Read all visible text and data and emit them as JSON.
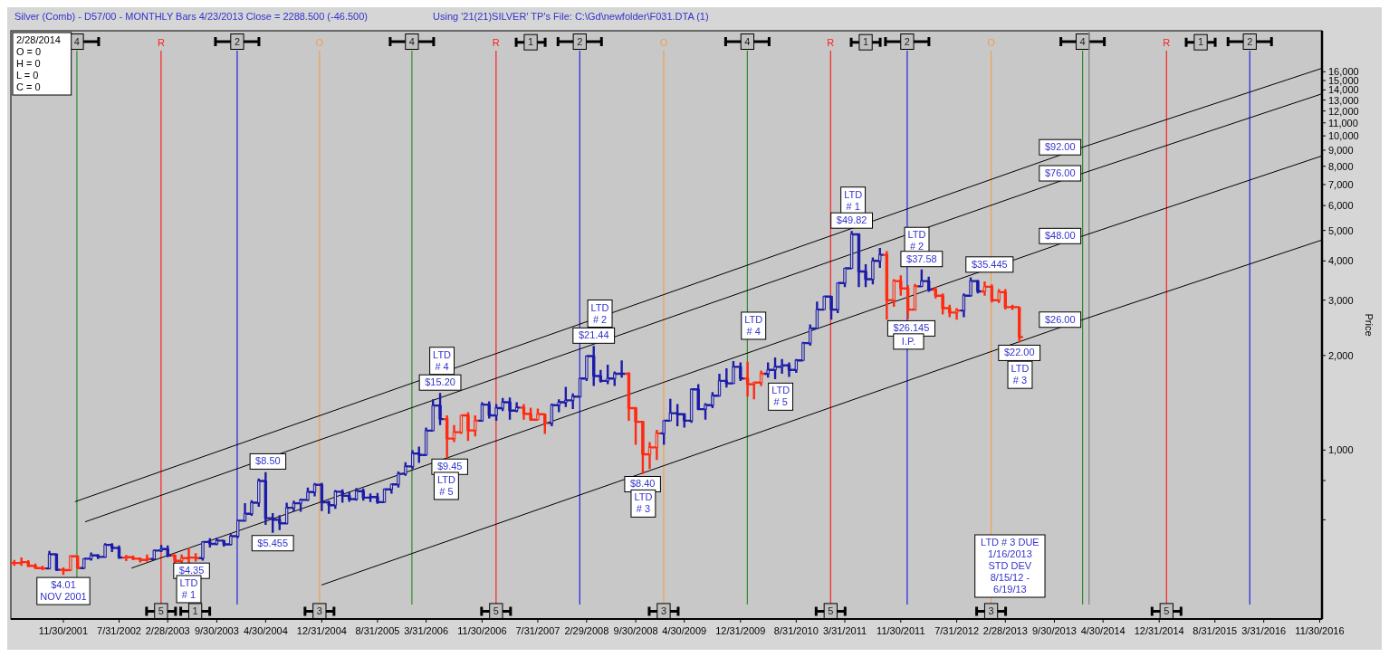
{
  "chart_data": {
    "type": "candlestick",
    "title": "Silver (Comb) - D57/00  - MONTHLY Bars  4/23/2013 Close = 2288.500 (-46.500)",
    "subtitle": "Using '21(21)SILVER' TP's    File: C:\\Gd\\newfolder\\F031.DTA (1)",
    "ylabel": "Price",
    "log": true,
    "xlim": [
      "2001-04-15",
      "2016-12-10"
    ],
    "ylim": [
      290,
      21600
    ],
    "xticks": [
      {
        "value": "2001-11-30",
        "label": "11/30/2001"
      },
      {
        "value": "2002-07-31",
        "label": "7/31/2002"
      },
      {
        "value": "2003-02-28",
        "label": "2/28/2003"
      },
      {
        "value": "2003-09-30",
        "label": "9/30/2003"
      },
      {
        "value": "2004-04-30",
        "label": "4/30/2004"
      },
      {
        "value": "2004-12-31",
        "label": "12/31/2004"
      },
      {
        "value": "2005-08-31",
        "label": "8/31/2005"
      },
      {
        "value": "2006-03-31",
        "label": "3/31/2006"
      },
      {
        "value": "2006-11-30",
        "label": "11/30/2006"
      },
      {
        "value": "2007-07-31",
        "label": "7/31/2007"
      },
      {
        "value": "2008-02-29",
        "label": "2/29/2008"
      },
      {
        "value": "2008-09-30",
        "label": "9/30/2008"
      },
      {
        "value": "2009-04-30",
        "label": "4/30/2009"
      },
      {
        "value": "2009-12-31",
        "label": "12/31/2009"
      },
      {
        "value": "2010-08-31",
        "label": "8/31/2010"
      },
      {
        "value": "2011-03-31",
        "label": "3/31/2011"
      },
      {
        "value": "2011-11-30",
        "label": "11/30/2011"
      },
      {
        "value": "2012-07-31",
        "label": "7/31/2012"
      },
      {
        "value": "2013-02-28",
        "label": "2/28/2013"
      },
      {
        "value": "2013-09-30",
        "label": "9/30/2013"
      },
      {
        "value": "2014-04-30",
        "label": "4/30/2014"
      },
      {
        "value": "2014-12-31",
        "label": "12/31/2014"
      },
      {
        "value": "2015-08-31",
        "label": "8/31/2015"
      },
      {
        "value": "2016-03-31",
        "label": "3/31/2016"
      },
      {
        "value": "2016-11-30",
        "label": "11/30/2016"
      }
    ],
    "yticks": [
      {
        "value": 600,
        "label": null
      },
      {
        "value": 800,
        "label": null
      },
      {
        "value": 1000,
        "label": "1,000"
      },
      {
        "value": 2000,
        "label": "2,000"
      },
      {
        "value": 3000,
        "label": "3,000"
      },
      {
        "value": 4000,
        "label": "4,000"
      },
      {
        "value": 5000,
        "label": "5,000"
      },
      {
        "value": 6000,
        "label": "6,000"
      },
      {
        "value": 7000,
        "label": "7,000"
      },
      {
        "value": 8000,
        "label": "8,000"
      },
      {
        "value": 9000,
        "label": "9,000"
      },
      {
        "value": 10000,
        "label": "10,000"
      },
      {
        "value": 11000,
        "label": "11,000"
      },
      {
        "value": 12000,
        "label": "12,000"
      },
      {
        "value": 13000,
        "label": "13,000"
      },
      {
        "value": 14000,
        "label": "14,000"
      },
      {
        "value": 15000,
        "label": "15,000"
      },
      {
        "value": 16000,
        "label": "16,000"
      }
    ],
    "x": [
      "2001-04-30",
      "2001-05-31",
      "2001-06-30",
      "2001-07-31",
      "2001-08-31",
      "2001-09-30",
      "2001-10-31",
      "2001-11-30",
      "2001-12-31",
      "2002-01-31",
      "2002-02-28",
      "2002-03-31",
      "2002-04-30",
      "2002-05-31",
      "2002-06-30",
      "2002-07-31",
      "2002-08-31",
      "2002-09-30",
      "2002-10-31",
      "2002-11-30",
      "2002-12-31",
      "2003-01-31",
      "2003-02-28",
      "2003-03-31",
      "2003-04-30",
      "2003-05-31",
      "2003-06-30",
      "2003-07-31",
      "2003-08-31",
      "2003-09-30",
      "2003-10-31",
      "2003-11-30",
      "2003-12-31",
      "2004-01-31",
      "2004-02-29",
      "2004-03-31",
      "2004-04-30",
      "2004-05-31",
      "2004-06-30",
      "2004-07-31",
      "2004-08-31",
      "2004-09-30",
      "2004-10-31",
      "2004-11-30",
      "2004-12-31",
      "2005-01-31",
      "2005-02-28",
      "2005-03-31",
      "2005-04-30",
      "2005-05-31",
      "2005-06-30",
      "2005-07-31",
      "2005-08-31",
      "2005-09-30",
      "2005-10-31",
      "2005-11-30",
      "2005-12-31",
      "2006-01-31",
      "2006-02-28",
      "2006-03-31",
      "2006-04-30",
      "2006-05-31",
      "2006-06-30",
      "2006-07-31",
      "2006-08-31",
      "2006-09-30",
      "2006-10-31",
      "2006-11-30",
      "2006-12-31",
      "2007-01-31",
      "2007-02-28",
      "2007-03-31",
      "2007-04-30",
      "2007-05-31",
      "2007-06-30",
      "2007-07-31",
      "2007-08-31",
      "2007-09-30",
      "2007-10-31",
      "2007-11-30",
      "2007-12-31",
      "2008-01-31",
      "2008-02-29",
      "2008-03-31",
      "2008-04-30",
      "2008-05-31",
      "2008-06-30",
      "2008-07-31",
      "2008-08-31",
      "2008-09-30",
      "2008-10-31",
      "2008-11-30",
      "2008-12-31",
      "2009-01-31",
      "2009-02-28",
      "2009-03-31",
      "2009-04-30",
      "2009-05-31",
      "2009-06-30",
      "2009-07-31",
      "2009-08-31",
      "2009-09-30",
      "2009-10-31",
      "2009-11-30",
      "2009-12-31",
      "2010-01-31",
      "2010-02-28",
      "2010-03-31",
      "2010-04-30",
      "2010-05-31",
      "2010-06-30",
      "2010-07-31",
      "2010-08-31",
      "2010-09-30",
      "2010-10-31",
      "2010-11-30",
      "2010-12-31",
      "2011-01-31",
      "2011-02-28",
      "2011-03-31",
      "2011-04-30",
      "2011-05-31",
      "2011-06-30",
      "2011-07-31",
      "2011-08-31",
      "2011-09-30",
      "2011-10-31",
      "2011-11-30",
      "2011-12-31",
      "2012-01-31",
      "2012-02-29",
      "2012-03-31",
      "2012-04-30",
      "2012-05-31",
      "2012-06-30",
      "2012-07-31",
      "2012-08-31",
      "2012-09-30",
      "2012-10-31",
      "2012-11-30",
      "2012-12-31",
      "2013-01-31",
      "2013-02-28",
      "2013-03-31",
      "2013-04-30"
    ],
    "ohlc": [
      [
        437,
        447,
        428,
        437
      ],
      [
        437,
        455,
        428,
        440
      ],
      [
        440,
        446,
        424,
        428
      ],
      [
        428,
        435,
        419,
        421
      ],
      [
        421,
        428,
        415,
        420
      ],
      [
        420,
        478,
        417,
        466
      ],
      [
        466,
        469,
        412,
        416
      ],
      [
        416,
        423,
        401,
        415
      ],
      [
        415,
        463,
        413,
        459
      ],
      [
        459,
        462,
        419,
        421
      ],
      [
        421,
        451,
        419,
        451
      ],
      [
        451,
        472,
        445,
        462
      ],
      [
        462,
        467,
        450,
        457
      ],
      [
        457,
        505,
        454,
        499
      ],
      [
        499,
        505,
        474,
        488
      ],
      [
        488,
        497,
        451,
        455
      ],
      [
        455,
        464,
        443,
        456
      ],
      [
        456,
        461,
        446,
        451
      ],
      [
        451,
        455,
        439,
        447
      ],
      [
        447,
        465,
        441,
        450
      ],
      [
        450,
        482,
        448,
        479
      ],
      [
        479,
        499,
        474,
        484
      ],
      [
        484,
        497,
        456,
        462
      ],
      [
        462,
        466,
        436,
        444
      ],
      [
        444,
        465,
        436,
        453
      ],
      [
        453,
        489,
        435,
        455
      ],
      [
        455,
        470,
        442,
        453
      ],
      [
        453,
        513,
        445,
        510
      ],
      [
        510,
        524,
        490,
        503
      ],
      [
        503,
        526,
        498,
        515
      ],
      [
        515,
        517,
        493,
        501
      ],
      [
        501,
        540,
        497,
        532
      ],
      [
        532,
        600,
        525,
        596
      ],
      [
        596,
        678,
        592,
        627
      ],
      [
        627,
        692,
        618,
        680
      ],
      [
        680,
        812,
        660,
        797
      ],
      [
        797,
        850,
        578,
        607
      ],
      [
        607,
        630,
        545.5,
        600
      ],
      [
        600,
        621,
        556,
        585
      ],
      [
        585,
        680,
        580,
        655
      ],
      [
        655,
        690,
        638,
        677
      ],
      [
        677,
        700,
        636,
        694
      ],
      [
        694,
        760,
        688,
        735
      ],
      [
        735,
        785,
        712,
        775
      ],
      [
        775,
        787,
        640,
        682
      ],
      [
        682,
        690,
        627,
        668
      ],
      [
        668,
        746,
        650,
        737
      ],
      [
        737,
        750,
        680,
        715
      ],
      [
        715,
        735,
        685,
        698
      ],
      [
        698,
        757,
        690,
        740
      ],
      [
        740,
        755,
        690,
        706
      ],
      [
        706,
        728,
        683,
        709
      ],
      [
        709,
        730,
        674,
        683
      ],
      [
        683,
        755,
        680,
        750
      ],
      [
        750,
        780,
        726,
        778
      ],
      [
        778,
        855,
        760,
        840
      ],
      [
        840,
        915,
        828,
        887
      ],
      [
        887,
        999,
        870,
        975
      ],
      [
        975,
        1025,
        910,
        965
      ],
      [
        965,
        1180,
        960,
        1153
      ],
      [
        1153,
        1450,
        1150,
        1386
      ],
      [
        1386,
        1520,
        1200,
        1255
      ],
      [
        1255,
        1290,
        945,
        1088
      ],
      [
        1088,
        1200,
        1060,
        1140
      ],
      [
        1140,
        1290,
        1125,
        1290
      ],
      [
        1290,
        1320,
        1070,
        1155
      ],
      [
        1155,
        1290,
        1105,
        1240
      ],
      [
        1240,
        1420,
        1230,
        1395
      ],
      [
        1395,
        1430,
        1260,
        1290
      ],
      [
        1290,
        1400,
        1240,
        1360
      ],
      [
        1360,
        1465,
        1330,
        1420
      ],
      [
        1420,
        1470,
        1250,
        1335
      ],
      [
        1335,
        1420,
        1320,
        1365
      ],
      [
        1365,
        1400,
        1250,
        1305
      ],
      [
        1305,
        1365,
        1240,
        1250
      ],
      [
        1250,
        1355,
        1250,
        1300
      ],
      [
        1300,
        1305,
        1125,
        1220
      ],
      [
        1220,
        1405,
        1190,
        1390
      ],
      [
        1390,
        1450,
        1320,
        1420
      ],
      [
        1420,
        1590,
        1370,
        1440
      ],
      [
        1440,
        1515,
        1350,
        1480
      ],
      [
        1480,
        1690,
        1470,
        1690
      ],
      [
        1690,
        2000,
        1660,
        1990
      ],
      [
        1990,
        2144,
        1600,
        1720
      ],
      [
        1720,
        1800,
        1640,
        1660
      ],
      [
        1660,
        1870,
        1620,
        1690
      ],
      [
        1690,
        1780,
        1600,
        1750
      ],
      [
        1750,
        1930,
        1700,
        1750
      ],
      [
        1750,
        1770,
        1240,
        1360
      ],
      [
        1360,
        1370,
        1040,
        1230
      ],
      [
        1230,
        1240,
        840,
        970
      ],
      [
        970,
        1060,
        870,
        1020
      ],
      [
        1020,
        1160,
        930,
        1130
      ],
      [
        1130,
        1240,
        1040,
        1240
      ],
      [
        1240,
        1455,
        1240,
        1310
      ],
      [
        1310,
        1400,
        1190,
        1300
      ],
      [
        1300,
        1310,
        1180,
        1240
      ],
      [
        1240,
        1570,
        1220,
        1560
      ],
      [
        1560,
        1620,
        1340,
        1350
      ],
      [
        1350,
        1410,
        1250,
        1390
      ],
      [
        1390,
        1530,
        1360,
        1490
      ],
      [
        1490,
        1750,
        1480,
        1660
      ],
      [
        1660,
        1820,
        1580,
        1630
      ],
      [
        1630,
        1920,
        1630,
        1840
      ],
      [
        1840,
        1900,
        1660,
        1690
      ],
      [
        1690,
        1910,
        1480,
        1620
      ],
      [
        1620,
        1650,
        1450,
        1640
      ],
      [
        1640,
        1790,
        1600,
        1750
      ],
      [
        1750,
        1900,
        1700,
        1800
      ],
      [
        1800,
        1970,
        1680,
        1840
      ],
      [
        1840,
        1950,
        1750,
        1860
      ],
      [
        1860,
        1900,
        1710,
        1800
      ],
      [
        1800,
        1950,
        1760,
        1930
      ],
      [
        1930,
        2210,
        1930,
        2190
      ],
      [
        2190,
        2510,
        2150,
        2440
      ],
      [
        2440,
        2970,
        2440,
        2800
      ],
      [
        2800,
        3100,
        2800,
        3080
      ],
      [
        3080,
        3100,
        2600,
        2800
      ],
      [
        2800,
        3400,
        2730,
        3400
      ],
      [
        3400,
        3790,
        3300,
        3790
      ],
      [
        3790,
        4982,
        3780,
        4860
      ],
      [
        4860,
        4900,
        3300,
        3700
      ],
      [
        3700,
        3900,
        3300,
        3500
      ],
      [
        3500,
        4100,
        3370,
        4000
      ],
      [
        4000,
        4400,
        3800,
        4180
      ],
      [
        4180,
        4300,
        2600,
        3000
      ],
      [
        3000,
        3500,
        2860,
        3450
      ],
      [
        3450,
        3600,
        3100,
        3270
      ],
      [
        3270,
        3350,
        2614.5,
        2800
      ],
      [
        2800,
        3380,
        2780,
        3320
      ],
      [
        3320,
        3758,
        3300,
        3450
      ],
      [
        3450,
        3560,
        3190,
        3240
      ],
      [
        3240,
        3300,
        3040,
        3100
      ],
      [
        3100,
        3150,
        2700,
        2830
      ],
      [
        2830,
        2900,
        2650,
        2740
      ],
      [
        2740,
        2830,
        2600,
        2780
      ],
      [
        2780,
        3150,
        2650,
        3100
      ],
      [
        3100,
        3544.5,
        3080,
        3450
      ],
      [
        3450,
        3480,
        3150,
        3200
      ],
      [
        3200,
        3440,
        3100,
        3310
      ],
      [
        3310,
        3370,
        2950,
        3000
      ],
      [
        3000,
        3250,
        2940,
        3180
      ],
      [
        3180,
        3250,
        2800,
        2850
      ],
      [
        2850,
        2900,
        2790,
        2850
      ],
      [
        2850,
        2850,
        2200,
        2288.5
      ]
    ],
    "colors": [
      "#ff2a10",
      "#ff2a10",
      "#ff2a10",
      "#ff2a10",
      "#ff2a10",
      "#1c1ca8",
      "#1c1ca8",
      "#ff2a10",
      "#ff2a10",
      "#ff2a10",
      "#1c1ca8",
      "#1c1ca8",
      "#1c1ca8",
      "#1c1ca8",
      "#1c1ca8",
      "#1c1ca8",
      "#ff2a10",
      "#ff2a10",
      "#ff2a10",
      "#ff2a10",
      "#1c1ca8",
      "#1c1ca8",
      "#1c1ca8",
      "#ff2a10",
      "#ff2a10",
      "#ff2a10",
      "#ff2a10",
      "#1c1ca8",
      "#1c1ca8",
      "#1c1ca8",
      "#1c1ca8",
      "#1c1ca8",
      "#1c1ca8",
      "#1c1ca8",
      "#1c1ca8",
      "#1c1ca8",
      "#1c1ca8",
      "#1c1ca8",
      "#1c1ca8",
      "#1c1ca8",
      "#1c1ca8",
      "#1c1ca8",
      "#1c1ca8",
      "#1c1ca8",
      "#1c1ca8",
      "#1c1ca8",
      "#1c1ca8",
      "#1c1ca8",
      "#1c1ca8",
      "#1c1ca8",
      "#1c1ca8",
      "#1c1ca8",
      "#1c1ca8",
      "#1c1ca8",
      "#1c1ca8",
      "#1c1ca8",
      "#1c1ca8",
      "#1c1ca8",
      "#1c1ca8",
      "#1c1ca8",
      "#1c1ca8",
      "#1c1ca8",
      "#ff2a10",
      "#ff2a10",
      "#ff2a10",
      "#ff2a10",
      "#ff2a10",
      "#1c1ca8",
      "#1c1ca8",
      "#1c1ca8",
      "#1c1ca8",
      "#1c1ca8",
      "#1c1ca8",
      "#ff2a10",
      "#ff2a10",
      "#ff2a10",
      "#ff2a10",
      "#1c1ca8",
      "#1c1ca8",
      "#1c1ca8",
      "#1c1ca8",
      "#1c1ca8",
      "#1c1ca8",
      "#1c1ca8",
      "#1c1ca8",
      "#1c1ca8",
      "#1c1ca8",
      "#1c1ca8",
      "#ff2a10",
      "#ff2a10",
      "#ff2a10",
      "#ff2a10",
      "#ff2a10",
      "#1c1ca8",
      "#1c1ca8",
      "#1c1ca8",
      "#1c1ca8",
      "#1c1ca8",
      "#1c1ca8",
      "#1c1ca8",
      "#1c1ca8",
      "#1c1ca8",
      "#1c1ca8",
      "#1c1ca8",
      "#1c1ca8",
      "#ff2a10",
      "#ff2a10",
      "#ff2a10",
      "#1c1ca8",
      "#1c1ca8",
      "#1c1ca8",
      "#1c1ca8",
      "#1c1ca8",
      "#1c1ca8",
      "#1c1ca8",
      "#1c1ca8",
      "#1c1ca8",
      "#1c1ca8",
      "#1c1ca8",
      "#1c1ca8",
      "#1c1ca8",
      "#1c1ca8",
      "#1c1ca8",
      "#1c1ca8",
      "#1c1ca8",
      "#ff2a10",
      "#ff2a10",
      "#ff2a10",
      "#ff2a10",
      "#ff2a10",
      "#1c1ca8",
      "#1c1ca8",
      "#ff2a10",
      "#ff2a10",
      "#ff2a10",
      "#ff2a10",
      "#1c1ca8",
      "#1c1ca8",
      "#1c1ca8",
      "#ff2a10",
      "#ff2a10",
      "#ff2a10",
      "#ff2a10",
      "#ff2a10",
      "#ff2a10"
    ],
    "series": [
      {
        "type": "line",
        "color": "#000000",
        "x": [
          "2002-01-20",
          "2014-01-31",
          "2016-12-09"
        ],
        "values": [
          685,
          9200,
          16400
        ]
      },
      {
        "type": "line",
        "color": "#000000",
        "x": [
          "2002-03-05",
          "2014-01-31",
          "2016-12-09"
        ],
        "values": [
          591,
          7600,
          13600
        ]
      },
      {
        "type": "line",
        "color": "#000000",
        "x": [
          "2002-09-23",
          "2014-01-31",
          "2016-12-09"
        ],
        "values": [
          421,
          4800,
          8630
        ]
      },
      {
        "type": "line",
        "color": "#000000",
        "x": [
          "2004-12-30",
          "2014-01-31",
          "2016-12-09"
        ],
        "values": [
          372,
          2600,
          4660
        ]
      }
    ],
    "ref_lines": [
      {
        "axis": "x",
        "value": "2002-01-28",
        "label": "4",
        "color": "#2e8b2e"
      },
      {
        "axis": "x",
        "value": "2003-01-30",
        "label": "R",
        "color": "#ff2020"
      },
      {
        "axis": "x",
        "value": "2003-12-28",
        "label": "2",
        "color": "#2020e0"
      },
      {
        "axis": "x",
        "value": "2004-12-21",
        "label": "O",
        "color": "#f0a050"
      },
      {
        "axis": "x",
        "value": "2006-01-28",
        "label": "4",
        "color": "#2e8b2e"
      },
      {
        "axis": "x",
        "value": "2007-01-30",
        "label": "R",
        "color": "#ff2020"
      },
      {
        "axis": "x",
        "value": "2008-01-30",
        "label": "2",
        "color": "#2020e0"
      },
      {
        "axis": "x",
        "value": "2009-01-30",
        "label": "O",
        "color": "#f0a050"
      },
      {
        "axis": "x",
        "value": "2010-01-30",
        "label": "4",
        "color": "#2e8b2e"
      },
      {
        "axis": "x",
        "value": "2011-01-28",
        "label": "R",
        "color": "#ff2020"
      },
      {
        "axis": "x",
        "value": "2011-12-28",
        "label": "2",
        "color": "#2020e0"
      },
      {
        "axis": "x",
        "value": "2012-12-28",
        "label": "O",
        "color": "#f0a050"
      },
      {
        "axis": "x",
        "value": "2014-01-31",
        "label": "4",
        "color": "#2e8b2e"
      },
      {
        "axis": "x",
        "value": "2014-02-28",
        "color": "#808080"
      },
      {
        "axis": "x",
        "value": "2015-02-01",
        "label": "R",
        "color": "#ff2020"
      },
      {
        "axis": "x",
        "value": "2016-01-30",
        "label": "2",
        "color": "#2020e0"
      }
    ],
    "annotations": [
      "2/28/2014\nO = 0\nH = 0\nL = 0\nC = 0",
      {
        "text": "1",
        "x": "2007-06-30",
        "y": 19860
      },
      {
        "text": "1",
        "x": "2011-06-30",
        "y": 19860
      },
      {
        "text": "1",
        "x": "2015-06-30",
        "y": 19860
      },
      {
        "text": "5",
        "x": "2003-01-30",
        "y": 307
      },
      {
        "text": "1",
        "x": "2003-06-28",
        "y": 307
      },
      {
        "text": "3",
        "x": "2004-12-21",
        "y": 307
      },
      {
        "text": "5",
        "x": "2007-01-30",
        "y": 307
      },
      {
        "text": "3",
        "x": "2009-01-30",
        "y": 307
      },
      {
        "text": "5",
        "x": "2011-01-28",
        "y": 307
      },
      {
        "text": "3",
        "x": "2012-12-28",
        "y": 307
      },
      {
        "text": "5",
        "x": "2015-02-01",
        "y": 307
      },
      {
        "text": "$4.01\nNOV 2001",
        "x": "2001-11-30",
        "y": 401
      },
      {
        "text": "$8.50",
        "x": "2004-05-10",
        "y": 920
      },
      {
        "text": "$5.455",
        "x": "2004-05-31",
        "y": 545.5
      },
      {
        "text": "$4.35",
        "x": "2003-06-12",
        "y": 413
      },
      {
        "text": "LTD\n# 1",
        "x": "2003-05-31",
        "y": 361
      },
      {
        "text": "LTD\n# 4",
        "x": "2006-06-08",
        "y": 1923
      },
      {
        "text": "$15.20",
        "x": "2006-05-31",
        "y": 1520
      },
      {
        "text": "$9.45",
        "x": "2006-07-12",
        "y": 885
      },
      {
        "text": "LTD\n# 5",
        "x": "2006-06-27",
        "y": 769
      },
      {
        "text": "LTD\n# 2",
        "x": "2008-04-27",
        "y": 2719
      },
      {
        "text": "$21.44",
        "x": "2008-03-31",
        "y": 2144
      },
      {
        "text": "$8.40",
        "x": "2008-10-30",
        "y": 779
      },
      {
        "text": "LTD\n# 3",
        "x": "2008-11-02",
        "y": 676
      },
      {
        "text": "LTD\n# 4",
        "x": "2010-02-26",
        "y": 2487
      },
      {
        "text": "LTD\n# 5",
        "x": "2010-06-24",
        "y": 1479
      },
      {
        "text": "LTD\n# 1",
        "x": "2011-05-06",
        "y": 6220
      },
      {
        "text": "$49.82",
        "x": "2011-04-30",
        "y": 4982
      },
      {
        "text": "LTD\n# 2",
        "x": "2012-02-08",
        "y": 4630
      },
      {
        "text": "$37.58",
        "x": "2012-02-29",
        "y": 3758
      },
      {
        "text": "$26.145",
        "x": "2012-01-15",
        "y": 2439
      },
      {
        "text": "I.P.",
        "x": "2012-01-03",
        "y": 2216
      },
      {
        "text": "$35.445",
        "x": "2012-12-21",
        "y": 3895
      },
      {
        "text": "$22.00",
        "x": "2013-04-30",
        "y": 2200
      },
      {
        "text": "LTD\n# 3",
        "x": "2013-05-03",
        "y": 1736
      },
      {
        "text": "$92.00",
        "x": "2014-01-31",
        "y": 9200
      },
      {
        "text": "$76.00",
        "x": "2014-01-31",
        "y": 7600
      },
      {
        "text": "$48.00",
        "x": "2014-01-31",
        "y": 4800
      },
      {
        "text": "$26.00",
        "x": "2014-01-31",
        "y": 2600
      },
      "LTD # 3 DUE\n1/16/2013\nSTD DEV\n8/15/12 -\n6/19/13"
    ]
  }
}
